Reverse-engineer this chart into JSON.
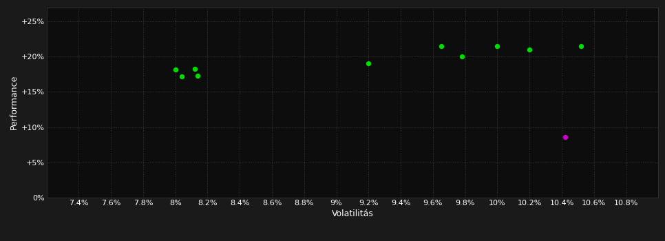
{
  "background_color": "#1a1a1a",
  "plot_bg_color": "#0d0d0d",
  "grid_color": "#3a3a3a",
  "text_color": "#ffffff",
  "xlabel": "Volatilitás",
  "ylabel": "Performance",
  "xlim": [
    0.072,
    0.11
  ],
  "ylim": [
    0.0,
    0.27
  ],
  "xticks": [
    0.074,
    0.076,
    0.078,
    0.08,
    0.082,
    0.084,
    0.086,
    0.088,
    0.09,
    0.092,
    0.094,
    0.096,
    0.098,
    0.1,
    0.102,
    0.104,
    0.106,
    0.108
  ],
  "xtick_labels": [
    "7.4%",
    "7.6%",
    "7.8%",
    "8%",
    "8.2%",
    "8.4%",
    "8.6%",
    "8.8%",
    "9%",
    "9.2%",
    "9.4%",
    "9.6%",
    "9.8%",
    "10%",
    "10.2%",
    "10.4%",
    "10.6%",
    "10.8%"
  ],
  "yticks": [
    0.0,
    0.05,
    0.1,
    0.15,
    0.2,
    0.25
  ],
  "ytick_labels": [
    "0%",
    "+5%",
    "+10%",
    "+15%",
    "+20%",
    "+25%"
  ],
  "green_points": [
    [
      0.08,
      0.182
    ],
    [
      0.0812,
      0.183
    ],
    [
      0.0804,
      0.172
    ],
    [
      0.0814,
      0.173
    ],
    [
      0.092,
      0.19
    ],
    [
      0.0965,
      0.215
    ],
    [
      0.0978,
      0.2
    ],
    [
      0.1,
      0.215
    ],
    [
      0.102,
      0.21
    ],
    [
      0.1052,
      0.215
    ]
  ],
  "magenta_points": [
    [
      0.1042,
      0.086
    ]
  ],
  "point_color_green": "#00dd00",
  "point_color_magenta": "#cc00cc",
  "point_size": 28,
  "font_size": 8,
  "label_font_size": 9
}
